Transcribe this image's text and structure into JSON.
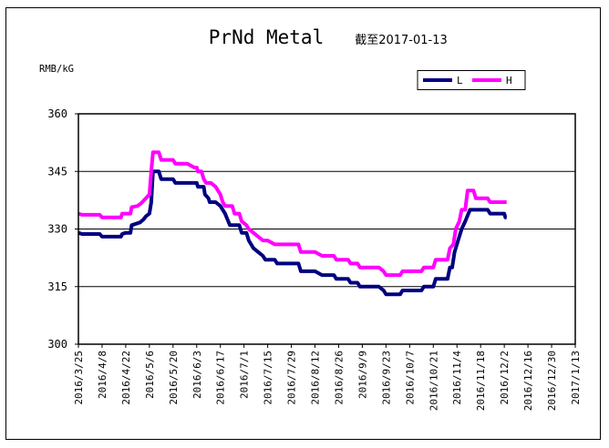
{
  "chart_data": {
    "type": "line",
    "title": "PrNd Metal",
    "subtitle": "截至2017-01-13",
    "ylabel": "RMB/kG",
    "xlabel": "",
    "ylim": [
      300,
      360
    ],
    "yticks": [
      300,
      315,
      330,
      345,
      360
    ],
    "grid": true,
    "legend_position": "top-right",
    "categories": [
      "2016/3/25",
      "2016/4/8",
      "2016/4/22",
      "2016/5/6",
      "2016/5/20",
      "2016/6/3",
      "2016/6/17",
      "2016/7/1",
      "2016/7/15",
      "2016/7/29",
      "2016/8/12",
      "2016/8/26",
      "2016/9/9",
      "2016/9/23",
      "2016/10/7",
      "2016/10/21",
      "2016/11/4",
      "2016/11/18",
      "2016/12/2",
      "2016/12/16",
      "2016/12/30",
      "2017/1/13"
    ],
    "series": [
      {
        "name": "L",
        "color": "#000080",
        "points": [
          [
            0,
            329
          ],
          [
            0.15,
            328.7
          ],
          [
            0.5,
            328.7
          ],
          [
            0.9,
            328.7
          ],
          [
            1.0,
            328
          ],
          [
            1.5,
            328
          ],
          [
            1.8,
            328
          ],
          [
            1.85,
            328.7
          ],
          [
            2.0,
            329
          ],
          [
            2.2,
            329
          ],
          [
            2.25,
            331
          ],
          [
            2.6,
            331.7
          ],
          [
            2.75,
            332.5
          ],
          [
            2.85,
            333.3
          ],
          [
            3.0,
            334
          ],
          [
            3.08,
            337
          ],
          [
            3.15,
            345
          ],
          [
            3.4,
            345
          ],
          [
            3.5,
            343
          ],
          [
            3.9,
            343
          ],
          [
            4.0,
            343
          ],
          [
            4.1,
            342
          ],
          [
            4.6,
            342
          ],
          [
            5.0,
            342
          ],
          [
            5.05,
            341
          ],
          [
            5.3,
            341
          ],
          [
            5.35,
            339
          ],
          [
            5.5,
            338
          ],
          [
            5.55,
            337
          ],
          [
            5.8,
            337
          ],
          [
            6.0,
            336
          ],
          [
            6.2,
            334
          ],
          [
            6.4,
            331
          ],
          [
            6.8,
            331
          ],
          [
            6.9,
            329
          ],
          [
            7.1,
            329
          ],
          [
            7.2,
            327
          ],
          [
            7.4,
            325
          ],
          [
            7.6,
            324
          ],
          [
            7.8,
            323
          ],
          [
            7.9,
            322
          ],
          [
            8.3,
            322
          ],
          [
            8.4,
            321
          ],
          [
            8.8,
            321
          ],
          [
            9.0,
            321
          ],
          [
            9.3,
            321
          ],
          [
            9.4,
            319
          ],
          [
            9.9,
            319
          ],
          [
            10.0,
            319
          ],
          [
            10.3,
            318
          ],
          [
            10.8,
            318
          ],
          [
            10.9,
            317
          ],
          [
            11.4,
            317
          ],
          [
            11.5,
            316
          ],
          [
            11.8,
            316
          ],
          [
            11.9,
            315
          ],
          [
            12.5,
            315
          ],
          [
            12.7,
            315
          ],
          [
            12.9,
            314
          ],
          [
            13.0,
            313
          ],
          [
            13.5,
            313
          ],
          [
            13.6,
            313
          ],
          [
            13.7,
            314
          ],
          [
            14.2,
            314
          ],
          [
            14.5,
            314
          ],
          [
            14.6,
            315
          ],
          [
            14.9,
            315
          ],
          [
            15.0,
            315
          ],
          [
            15.1,
            317
          ],
          [
            15.5,
            317
          ],
          [
            15.6,
            317
          ],
          [
            15.7,
            320
          ],
          [
            15.8,
            320
          ],
          [
            15.9,
            324
          ],
          [
            16.05,
            327
          ],
          [
            16.2,
            330
          ],
          [
            16.35,
            332
          ],
          [
            16.55,
            335
          ],
          [
            17.0,
            335
          ],
          [
            17.3,
            335
          ],
          [
            17.4,
            334
          ],
          [
            17.8,
            334
          ],
          [
            18.0,
            334
          ],
          [
            18.05,
            333
          ],
          [
            18.1,
            333
          ]
        ]
      },
      {
        "name": "H",
        "color": "#ff00ff",
        "points": [
          [
            0,
            334
          ],
          [
            0.15,
            333.7
          ],
          [
            0.5,
            333.7
          ],
          [
            0.9,
            333.7
          ],
          [
            1.0,
            333
          ],
          [
            1.5,
            333
          ],
          [
            1.8,
            333
          ],
          [
            1.85,
            334
          ],
          [
            2.0,
            334
          ],
          [
            2.2,
            334
          ],
          [
            2.25,
            335.7
          ],
          [
            2.5,
            336
          ],
          [
            2.65,
            336.7
          ],
          [
            2.85,
            338
          ],
          [
            3.0,
            339
          ],
          [
            3.08,
            345
          ],
          [
            3.15,
            350
          ],
          [
            3.4,
            350
          ],
          [
            3.5,
            348
          ],
          [
            3.9,
            348
          ],
          [
            4.0,
            348
          ],
          [
            4.1,
            347
          ],
          [
            4.6,
            347
          ],
          [
            4.9,
            346
          ],
          [
            5.0,
            346
          ],
          [
            5.05,
            345
          ],
          [
            5.2,
            345
          ],
          [
            5.3,
            343
          ],
          [
            5.4,
            342
          ],
          [
            5.6,
            342
          ],
          [
            5.8,
            341
          ],
          [
            5.9,
            340
          ],
          [
            6.0,
            339
          ],
          [
            6.1,
            337
          ],
          [
            6.2,
            336
          ],
          [
            6.5,
            336
          ],
          [
            6.6,
            334
          ],
          [
            6.8,
            334
          ],
          [
            6.9,
            332
          ],
          [
            7.1,
            331
          ],
          [
            7.2,
            330
          ],
          [
            7.4,
            329
          ],
          [
            7.6,
            328
          ],
          [
            7.8,
            327
          ],
          [
            8.0,
            327
          ],
          [
            8.3,
            326
          ],
          [
            8.9,
            326
          ],
          [
            9.0,
            326
          ],
          [
            9.3,
            326
          ],
          [
            9.4,
            324
          ],
          [
            9.9,
            324
          ],
          [
            10.0,
            324
          ],
          [
            10.3,
            323
          ],
          [
            10.8,
            323
          ],
          [
            10.9,
            322
          ],
          [
            11.4,
            322
          ],
          [
            11.5,
            321
          ],
          [
            11.8,
            321
          ],
          [
            11.9,
            320
          ],
          [
            12.5,
            320
          ],
          [
            12.7,
            320
          ],
          [
            12.9,
            319
          ],
          [
            13.0,
            318
          ],
          [
            13.5,
            318
          ],
          [
            13.6,
            318
          ],
          [
            13.7,
            319
          ],
          [
            14.2,
            319
          ],
          [
            14.5,
            319
          ],
          [
            14.6,
            320
          ],
          [
            14.9,
            320
          ],
          [
            15.0,
            320
          ],
          [
            15.1,
            322
          ],
          [
            15.5,
            322
          ],
          [
            15.6,
            322
          ],
          [
            15.7,
            325
          ],
          [
            15.85,
            326
          ],
          [
            15.95,
            330
          ],
          [
            16.1,
            332
          ],
          [
            16.2,
            335
          ],
          [
            16.35,
            335
          ],
          [
            16.45,
            340
          ],
          [
            16.7,
            340
          ],
          [
            16.8,
            338
          ],
          [
            17.2,
            338
          ],
          [
            17.3,
            338
          ],
          [
            17.4,
            337
          ],
          [
            17.8,
            337
          ],
          [
            18.0,
            337
          ],
          [
            18.1,
            337
          ]
        ]
      }
    ]
  }
}
